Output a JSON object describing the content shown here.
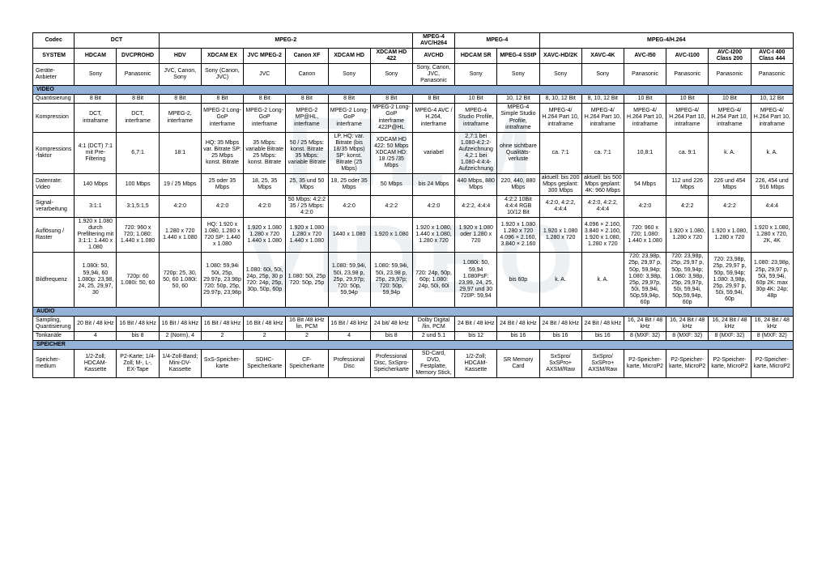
{
  "watermark": {
    "line1": "FILM",
    "line2": "VIDEO"
  },
  "colors": {
    "section_bg": "#95b3d7",
    "border": "#000000"
  },
  "header_groups": {
    "codec": "Codec",
    "dct": "DCT",
    "mpeg2": "MPEG-2",
    "mpeg4avc": "MPEG-4 AVC/H264",
    "mpeg4": "MPEG-4",
    "mpeg4h264": "MPEG-4/H.264"
  },
  "system_row": {
    "label": "SYSTEM",
    "cols": [
      "HDCAM",
      "DVCPROHD",
      "HDV",
      "XDCAM EX",
      "JVC MPEG-2",
      "Canon XF",
      "XDCAM HD",
      "XDCAM HD 422",
      "AVCHD",
      "HDCAM SR",
      "MPEG-4 SStP",
      "XAVC-HD/2K",
      "XAVC-4K",
      "AVC-I50",
      "AVC-I100",
      "AVC-I200 Class 200",
      "AVC-I 400 Class 444"
    ]
  },
  "sections": {
    "video": "VIDEO",
    "audio": "AUDIO",
    "speicher": "SPEICHER"
  },
  "rows": {
    "geraete": {
      "label": "Geräte-Anbieter",
      "cells": [
        "Sony",
        "Panasonic",
        "JVC, Canon, Sony",
        "Sony (Canon, JVC)",
        "JVC",
        "Canon",
        "Sony",
        "Sony",
        "Sony, Canon, JVC, Panasonic",
        "Sony",
        "Sony",
        "Sony",
        "Sony",
        "Panasonic",
        "Panasonic",
        "Panasonic",
        "Panasonic"
      ]
    },
    "quant": {
      "label": "Quantisierung",
      "cells": [
        "8 Bit",
        "8 Bit",
        "8 Bit",
        "8 Bit",
        "8 Bit",
        "8 Bit",
        "8 Bit",
        "8 Bit",
        "8 Bit",
        "10 Bit",
        "10, 12 Bit",
        "8, 10, 12 Bit",
        "8, 10, 12 Bit",
        "10 Bit",
        "10 Bit",
        "10 Bit",
        "10, 12 Bit"
      ]
    },
    "kompression": {
      "label": "Kompression",
      "cells": [
        "DCT, intraframe",
        "DCT, interframe",
        "MPEG-2, interframe",
        "MPEG-2 Long-GoP interframe",
        "MPEG-2 Long-GoP interframe",
        "MPEG-2 MP@HL, interframe",
        "MPEG-2 Long-GoP interframe",
        "MPEG-2 Long-GoP interframe 422P@HL",
        "MPEG-4 AVC / H.264, interframe",
        "MPEG-4 Studio Profile, intraframe",
        "MPEG-4 Simple Studio Profile, intraframe",
        "MPEG-4/ H.264 Part 10, intraframe",
        "MPEG-4/ H.264 Part 10, intraframe",
        "MPEG-4/ H.264 Part 10, intraframe",
        "MPEG-4/ H.264 Part 10, intraframe",
        "MPEG-4/ H.264 Part 10, intraframe",
        "MPEG-4/ H.264 Part 10, intraframe"
      ]
    },
    "kfaktor": {
      "label": "Kompressions-faktor",
      "cells": [
        "4:1 (DCT) 7:1 mit Pre-Filtering",
        "6,7:1",
        "18:1",
        "HQ: 35 Mbps var. Bitrate SP: 25 Mbps konst. Bitrate",
        "35 Mbps: variable Bitrate 25 Mbps: konst. Bitrate",
        "50 / 25 Mbps: konst. Bitrate 35 Mbps: variable Bitrate",
        "LP, HQ: var. Bitrate (bis 18/35 Mbps) SP: konst. Bitrate (25 Mbps)",
        "XDCAM HD 422: 50 Mbps XDCAM HD: 18 /25 /35 Mbps",
        "variabel",
        "2,7:1 bei 1.080-4:2:2-Aufzeichnung 4,2:1 bei 1.080-4:4:4-Aufzeichnung",
        "ohne sichtbare Qualitäts-verluste",
        "ca. 7:1",
        "ca. 7:1",
        "10,8:1",
        "ca. 9:1",
        "k. A.",
        "k. A."
      ]
    },
    "datenrate": {
      "label": "Datenrate: Video",
      "cells": [
        "140 Mbps",
        "100 Mbps",
        "19 / 25 Mbps",
        "25 oder 35 Mbps",
        "18, 25, 35 Mbps",
        "25, 35 und 50 Mbps",
        "18, 25 oder 35 Mbps",
        "50 Mbps",
        "bis 24 Mbps",
        "440 Mbps, 880 Mbps",
        "220, 440, 880 Mbps",
        "aktuell: bis 200 Mbps geplant: 300 Mbps",
        "aktuell: bis 500 Mbps geplant: 4K: 960 Mbps",
        "54 Mbps",
        "112 und 226 Mbps",
        "226 und 454 Mbps",
        "226, 454 und 916 Mbps"
      ]
    },
    "signal": {
      "label": "Signal-verarbeitung",
      "cells": [
        "3:1:1",
        "3:1,5:1,5",
        "4:2:0",
        "4:2:0",
        "4:2:0",
        "50 Mbps: 4:2:2 35 / 25 Mbps: 4:2:0",
        "4:2:0",
        "4:2:2",
        "4:2:0",
        "4:2:2, 4:4:4",
        "4:2:2 10Bit 4:4:4 RGB 10/12 Bit",
        "4:2:0, 4:2:2, 4:4:4",
        "4:2:0, 4:2:2, 4:4:4",
        "4:2:0",
        "4:2:2",
        "4:2:2",
        "4:4:4"
      ]
    },
    "aufloesung": {
      "label": "Auflösung / Raster",
      "cells": [
        "1.920 x 1.080 durch Prefiltering mit 3:1:1: 1.440 x 1.080",
        "720: 960 x 720; 1.080: 1.440 x 1.080",
        "1.280 x 720 1.440 x 1.080",
        "HQ: 1.920 x 1.080, 1.280 x 720 SP: 1.440 x 1.080",
        "1.920 x 1.080 1.280 x 720 1.440 x 1.080",
        "1.920 x 1.080 1.280 x 720 1.440 x 1.080",
        "1440 x 1.080",
        "1.920 x 1.080",
        "1.920 x 1.080, 1.440 x 1.080, 1.280 x 720",
        "1.920 x 1.080 oder 1.280 x 720",
        "1.920 x 1.080 1.280 x 720 4.096 × 2.160, 3.840 × 2.160",
        "1.920 x 1.080 1.280 x 720",
        "4.096 × 2.160, 3.840 × 2.160, 1.920 x 1.080, 1.280 x 720",
        "720: 960 x 720; 1.080: 1.440 x 1.080",
        "1.920 x 1.080, 1.280 x 720",
        "1.920 x 1.080, 1.280 x 720",
        "1.920 x 1.080, 1.280 x 720, 2K, 4K"
      ]
    },
    "bildfrequenz": {
      "label": "Bildfrequenz",
      "cells": [
        "1.080i: 50, 59,94i, 60 1.080p: 23,98, 24, 25, 29,97, 30",
        "720p: 60 1.080i: 50, 60",
        "720p: 25, 30, 50, 60 1.080i: 50, 60",
        "1.080: 59,94i 50i, 25p, 29.97p, 23.98p 720: 50p, 25p, 29.97p, 23,98p",
        "1.080: 60i, 50i, 24p, 25p, 30 p 720: 24p, 25p, 30p, 50p, 60p",
        "1.080: 50i, 25p 720: 50p, 25p",
        "1.080: 59,94i, 50i, 23,98 p, 25p, 29,97p; 720: 50p, 59,94p",
        "1.080: 59,94i, 50i, 23,98 p, 25p, 29,97p; 720: 50p, 59,94p",
        "720: 24p, 50p, 60p; 1.080: 24p, 50i, 60i",
        "1.080i: 50, 59,94 1.080PsF: 23,99, 24, 25, 29,97 und 30 720P: 59,94",
        "bis 60p",
        "k. A.",
        "k. A.",
        "720: 23,98p, 25p, 29,97 p, 50p, 59,94p; 1.080: 3,98p, 25p, 29,97p, 50i, 59,94i, 50p,59,94p, 60p",
        "720: 23,98p, 25p, 29,97 p, 50p, 59,94p; 1.080: 3,98p, 25p, 29,97p, 50i, 59,94i, 50p,59,94p, 60p",
        "720: 23,98p, 25p, 29,97 p, 50p, 59,94p; 1.080: 3,98p, 25p, 29,97 p, 50i, 59,94i, 60p",
        "1.080: 23,98p, 25p, 29,97 p, 50i, 59,94i, 60p 2K: max 30p 4K: 24p; 48p"
      ]
    },
    "sampling": {
      "label": "Sampling, Quantisierung",
      "cells": [
        "20 Bit / 48 kHz",
        "16 Bit / 48 kHz",
        "16 Bit / 48 kHz",
        "16 Bit / 48 kHz",
        "16 Bit / 48 kHz",
        "16 Bit /48 kHz lin. PCM",
        "16 Bit / 48 kHz",
        "24 bit/ 48 kHz",
        "Dolby Digital /lin. PCM",
        "24 Bit / 48 kHz",
        "24 Bit / 48 kHz",
        "24 Bit / 48 kHz",
        "24 Bit / 48 kHz",
        "16, 24 Bit / 48 kHz",
        "16, 24 Bit / 48 kHz",
        "16, 24 Bit / 48 kHz",
        "16, 24 Bit / 48 kHz"
      ]
    },
    "tonkanaele": {
      "label": "Tonkanäle",
      "cells": [
        "4",
        "bis 8",
        "2 (Norm), 4",
        "2",
        "2",
        "2",
        "4",
        "bis 8",
        "2 und 5.1",
        "bis 12",
        "bis 16",
        "bis 16",
        "bis 16",
        "8 (MXF: 32)",
        "8 (MXF: 32)",
        "8 (MXF: 32)",
        "8 (MXF: 32)"
      ]
    },
    "speichermedium": {
      "label": "Speicher-medium",
      "cells": [
        "1/2-Zoll; HDCAM-Kassette",
        "P2-Karte; 1/4-Zoll; M-, L-, EX-Tape",
        "1/4-Zoll-Band; Mini-DV-Kassette",
        "SxS-Speicher-karte",
        "SDHC-Speicherkarte",
        "CF-Speicherkarte",
        "Professional Disc",
        "Professional Disc, SxSpro-Speicherkarte",
        "SD-Card, DVD, Festplatte, Memory Stick,",
        "1/2-Zoll; HDCAM-Kassette",
        "SR Memory Card",
        "SxSpro/ SxSPro+ AXSM/Raw",
        "SxSpro/ SxSPro+ AXSM/Raw",
        "P2-Speicher-karte, MicroP2",
        "P2-Speicher-karte, MicroP2",
        "P2-Speicher-karte, MicroP2",
        "P2-Speicher-karte, MicroP2"
      ]
    }
  }
}
